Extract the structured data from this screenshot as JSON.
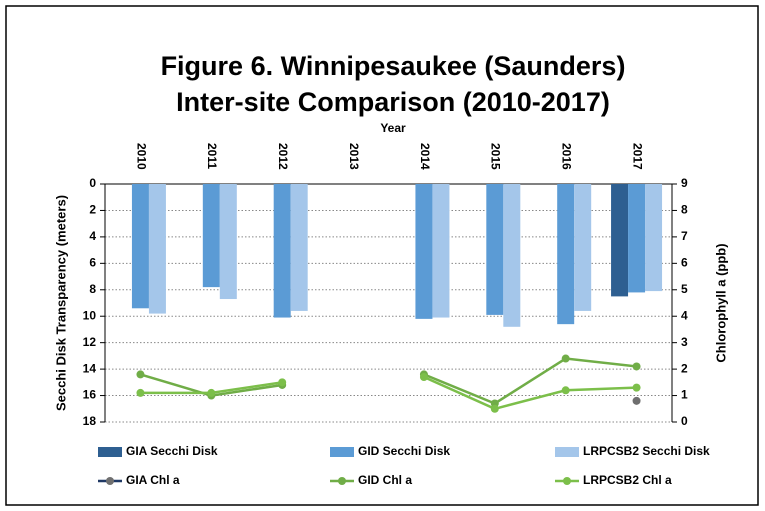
{
  "chart_data": {
    "type": "bar",
    "title": [
      "Figure 6. Winnipesaukee (Saunders)",
      "Inter-site Comparison (2010-2017)"
    ],
    "x_label": "Year",
    "y_label": "Secchi Disk Transparency  (meters)",
    "y2_label": "Chlorophyll a (ppb)",
    "categories": [
      "2010",
      "2011",
      "2012",
      "2013",
      "2014",
      "2015",
      "2016",
      "2017"
    ],
    "ylim": [
      0,
      18
    ],
    "y_inverted": true,
    "yticks": [
      0,
      2,
      4,
      6,
      8,
      10,
      12,
      14,
      16,
      18
    ],
    "y2lim": [
      0,
      9
    ],
    "y2ticks": [
      0,
      1,
      2,
      3,
      4,
      5,
      6,
      7,
      8,
      9
    ],
    "grid": true,
    "legend": "bottom",
    "series": [
      {
        "name": "GIA Secchi Disk",
        "type": "bar",
        "color": "#2e5f91",
        "values": [
          null,
          null,
          null,
          null,
          null,
          null,
          null,
          8.5
        ]
      },
      {
        "name": "GID Secchi Disk",
        "type": "bar",
        "color": "#5b9bd5",
        "values": [
          9.4,
          7.8,
          10.1,
          null,
          10.2,
          9.9,
          10.6,
          8.2
        ]
      },
      {
        "name": "LRPCSB2 Secchi Disk",
        "type": "bar",
        "color": "#a4c6ea",
        "values": [
          9.8,
          8.7,
          9.6,
          null,
          10.1,
          10.8,
          9.6,
          8.1
        ]
      },
      {
        "name": "GIA Chl a",
        "type": "line",
        "axis": "y2",
        "color": "#1f3864",
        "marker_color": "#6f6f6f",
        "values": [
          null,
          null,
          null,
          null,
          null,
          null,
          null,
          0.8
        ]
      },
      {
        "name": "GID Chl a",
        "type": "line",
        "axis": "y2",
        "color": "#70ad47",
        "marker_color": "#70ad47",
        "values": [
          1.8,
          1.0,
          1.4,
          null,
          1.8,
          0.7,
          2.4,
          2.1
        ]
      },
      {
        "name": "LRPCSB2 Chl a",
        "type": "line",
        "axis": "y2",
        "color": "#7cbf4a",
        "marker_color": "#7cbf4a",
        "values": [
          1.1,
          1.1,
          1.5,
          null,
          1.7,
          0.5,
          1.2,
          1.3
        ]
      }
    ]
  }
}
